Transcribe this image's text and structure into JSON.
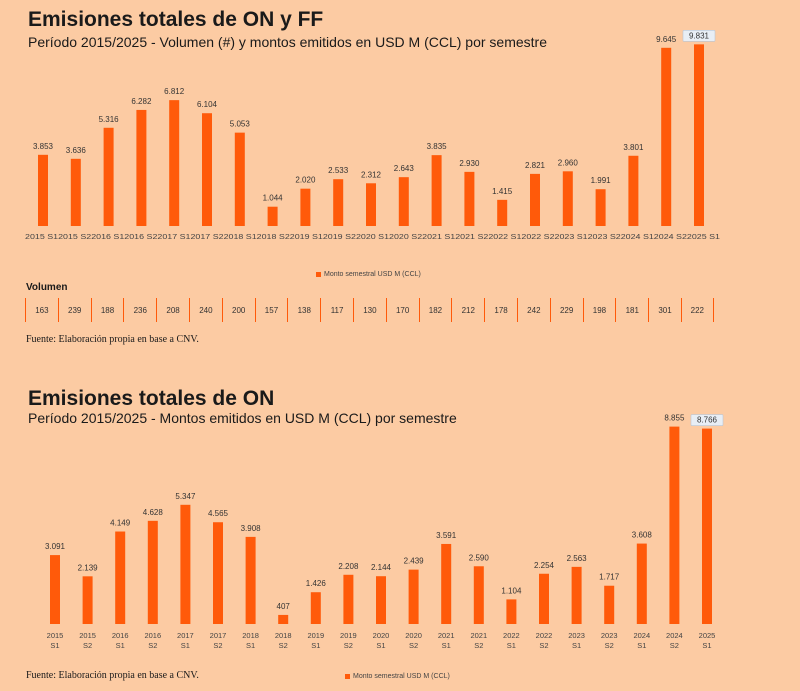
{
  "chart_data": [
    {
      "type": "bar",
      "title": "Emisiones totales de ON y FF",
      "subtitle": "Período 2015/2025 - Volumen (#) y montos emitidos en USD M (CCL) por semestre",
      "categories": [
        "2015 S1",
        "2015 S2",
        "2016 S1",
        "2016 S2",
        "2017 S1",
        "2017 S2",
        "2018 S1",
        "2018 S2",
        "2019 S1",
        "2019 S2",
        "2020 S1",
        "2020 S2",
        "2021 S1",
        "2021 S2",
        "2022 S1",
        "2022 S2",
        "2023 S1",
        "2023 S2",
        "2024 S1",
        "2024 S2",
        "2025 S1"
      ],
      "tick_labels": [
        "2015 S1",
        "2015 S2",
        "2016 S1",
        "2016 S2",
        "2017 S1",
        "2017 S2",
        "2018 S1",
        "2018 S2",
        "2019 S1",
        "2019 S2",
        "2020 S1",
        "2020 S2",
        "2021 S1",
        "2021 S2",
        "2022 S1",
        "2022 S2",
        "2023 S1",
        "2023 S2",
        "2024 S1",
        "2024 S2",
        "2025 S1"
      ],
      "values": [
        3853,
        3636,
        5316,
        6282,
        6812,
        6104,
        5053,
        1044,
        2020,
        2533,
        2312,
        2643,
        3835,
        2930,
        1415,
        2821,
        2960,
        1991,
        3801,
        9645,
        9831
      ],
      "value_labels": [
        "3.853",
        "3.636",
        "5.316",
        "6.282",
        "6.812",
        "6.104",
        "5.053",
        "1.044",
        "2.020",
        "2.533",
        "2.312",
        "2.643",
        "3.835",
        "2.930",
        "1.415",
        "2.821",
        "2.960",
        "1.991",
        "3.801",
        "9.645",
        "9.831"
      ],
      "highlight_last": true,
      "legend": "Monto semestral USD M (CCL)",
      "ylim": [
        0,
        10500
      ]
    },
    {
      "type": "bar",
      "title": "Emisiones totales de ON",
      "subtitle": "Período 2015/2025 - Montos emitidos en USD M (CCL) por semestre",
      "categories": [
        "2015 S1",
        "2015 S2",
        "2016 S1",
        "2016 S2",
        "2017 S1",
        "2017 S2",
        "2018 S1",
        "2018 S2",
        "2019 S1",
        "2019 S2",
        "2020 S1",
        "2020 S2",
        "2021 S1",
        "2021 S2",
        "2022 S1",
        "2022 S2",
        "2023 S1",
        "2023 S2",
        "2024 S1",
        "2024 S2",
        "2025 S1"
      ],
      "values": [
        3091,
        2139,
        4149,
        4628,
        5347,
        4565,
        3908,
        407,
        1426,
        2208,
        2144,
        2439,
        3591,
        2590,
        1104,
        2254,
        2563,
        1717,
        3608,
        8855,
        8766
      ],
      "value_labels": [
        "3.091",
        "2.139",
        "4.149",
        "4.628",
        "5.347",
        "4.565",
        "3.908",
        "407",
        "1.426",
        "2.208",
        "2.144",
        "2.439",
        "3.591",
        "2.590",
        "1.104",
        "2.254",
        "2.563",
        "1.717",
        "3.608",
        "8.855",
        "8.766"
      ],
      "highlight_last": true,
      "legend": "Monto semestral USD M (CCL)",
      "ylim": [
        0,
        9600
      ]
    }
  ],
  "volume": {
    "title": "Volumen",
    "values": [
      "163",
      "239",
      "188",
      "236",
      "208",
      "240",
      "200",
      "157",
      "138",
      "117",
      "130",
      "170",
      "182",
      "212",
      "178",
      "242",
      "229",
      "198",
      "181",
      "301",
      "222"
    ]
  },
  "sources": {
    "top": "Fuente: Elaboración propia en base a CNV.",
    "bottom": "Fuente: Elaboración propia en base a CNV."
  }
}
